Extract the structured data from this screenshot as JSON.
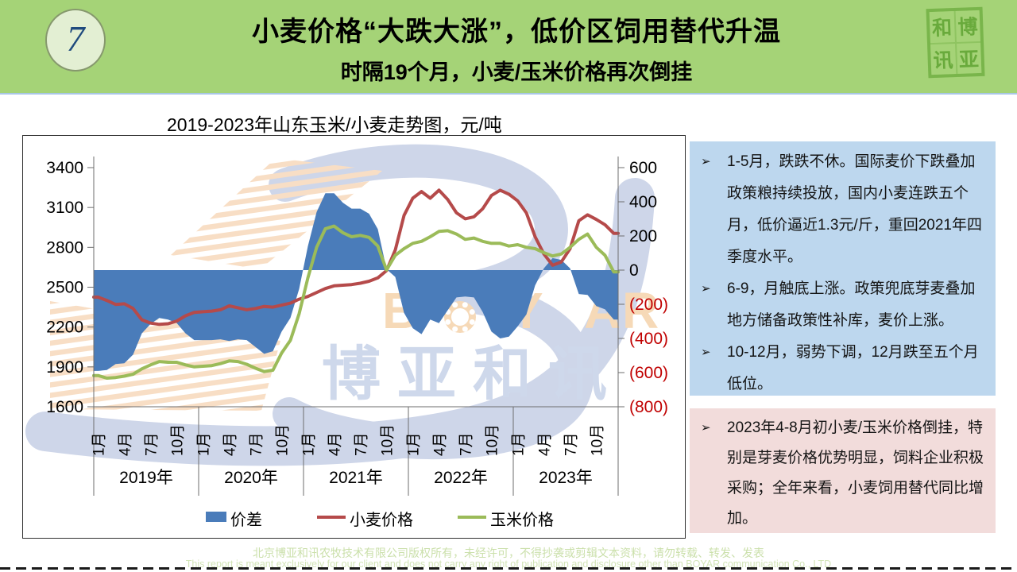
{
  "header": {
    "badge": "7",
    "title": "小麦价格“大跌大涨”，低价区饲用替代升温",
    "subtitle": "时隔19个月，小麦/玉米价格再次倒挂",
    "logo_chars": [
      "和",
      "博",
      "讯",
      "亚"
    ]
  },
  "chart": {
    "title": "2019-2023年山东玉米/小麦走势图，元/吨"
  },
  "chart_data": {
    "type": "area+line",
    "title": "2019-2023年山东玉米/小麦走势图，元/吨",
    "x_years": [
      "2019年",
      "2020年",
      "2021年",
      "2022年",
      "2023年"
    ],
    "x_month_ticks": [
      "1月",
      "4月",
      "7月",
      "10月"
    ],
    "months_per_year": 12,
    "left_axis": {
      "min": 1600,
      "max": 3400,
      "step": 300,
      "ticks": [
        "3400",
        "3100",
        "2800",
        "2500",
        "2200",
        "1900",
        "1600"
      ]
    },
    "right_axis": {
      "min": -800,
      "max": 600,
      "step": 200,
      "ticks": [
        "600",
        "400",
        "200",
        "0",
        "(200)",
        "(400)",
        "(600)",
        "(800)"
      ],
      "negative_color": "#c00000"
    },
    "grid": false,
    "legend_position": "bottom",
    "series": [
      {
        "name": "价差",
        "type": "area",
        "axis": "right",
        "color": "#4a7cba",
        "derived": "corn_minus_wheat"
      },
      {
        "name": "小麦价格",
        "type": "line",
        "axis": "left",
        "color": "#b54a4a",
        "values": [
          2425,
          2400,
          2370,
          2375,
          2340,
          2255,
          2230,
          2220,
          2225,
          2245,
          2285,
          2310,
          2315,
          2320,
          2330,
          2360,
          2345,
          2330,
          2340,
          2355,
          2350,
          2365,
          2380,
          2410,
          2430,
          2460,
          2490,
          2510,
          2515,
          2520,
          2530,
          2545,
          2570,
          2625,
          2780,
          3040,
          3170,
          3220,
          3170,
          3230,
          3160,
          3060,
          3015,
          3030,
          3090,
          3190,
          3230,
          3200,
          3150,
          3060,
          2880,
          2750,
          2665,
          2690,
          2790,
          3000,
          3045,
          3010,
          2970,
          2905
        ]
      },
      {
        "name": "玉米价格",
        "type": "line",
        "axis": "left",
        "color": "#9bbb59",
        "values": [
          1835,
          1815,
          1820,
          1830,
          1845,
          1885,
          1915,
          1940,
          1935,
          1935,
          1915,
          1900,
          1905,
          1910,
          1925,
          1945,
          1940,
          1920,
          1890,
          1865,
          1875,
          2005,
          2100,
          2300,
          2570,
          2800,
          2940,
          2960,
          2910,
          2880,
          2890,
          2875,
          2810,
          2630,
          2740,
          2790,
          2830,
          2845,
          2880,
          2920,
          2925,
          2900,
          2860,
          2870,
          2845,
          2830,
          2830,
          2810,
          2820,
          2800,
          2790,
          2760,
          2735,
          2750,
          2800,
          2860,
          2900,
          2800,
          2740,
          2615
        ]
      }
    ]
  },
  "panels": {
    "bullet_marker": "➢",
    "blue": {
      "bullets": [
        "1-5月，跌跌不休。国际麦价下跌叠加政策粮持续投放，国内小麦连跌五个月，低价逼近1.3元/斤，重回2021年四季度水平。",
        "6-9，月触底上涨。政策兜底芽麦叠加地方储备政策性补库，麦价上涨。",
        "10-12月，弱势下调，12月跌至五个月低位。"
      ]
    },
    "pink": {
      "bullets": [
        "2023年4-8月初小麦/玉米价格倒挂，特别是芽麦价格优势明显，饲料企业积极采购；全年来看，小麦饲用替代同比增加。"
      ]
    }
  },
  "watermark": {
    "letters": [
      "B",
      "Y",
      "A",
      "R"
    ],
    "cjk": [
      "博",
      "亚",
      "和",
      "讯"
    ]
  },
  "footer": {
    "line1": "北京博亚和讯农牧技术有限公司版权所有，未经许可，不得抄袭或剪辑文本资料，请勿转载、转发、发表",
    "line2": "This report is meant exclusively for our client and does not carry any right of publication and disclosure other than BOYAR communication Co., LTD"
  }
}
